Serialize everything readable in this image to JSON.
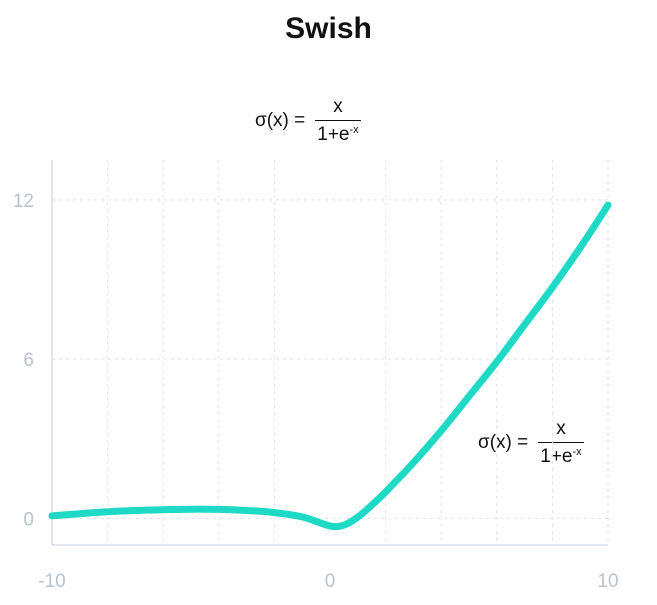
{
  "chart_data": {
    "type": "line",
    "title": "Swish",
    "xlabel": "",
    "ylabel": "",
    "xlim": [
      -10,
      10
    ],
    "ylim": [
      -1,
      13.5
    ],
    "x_ticks": [
      "-10",
      "0",
      "10"
    ],
    "y_ticks": [
      "0",
      "6",
      "12"
    ],
    "grid": true,
    "series": [
      {
        "color": "#1dd9c6",
        "x": [
          -10,
          -9,
          -8,
          -7,
          -6,
          -5,
          -4,
          -3,
          -2,
          -1,
          0,
          0.5,
          1,
          1.5,
          2,
          3,
          4,
          5,
          6,
          7,
          8,
          9,
          10
        ],
        "y": [
          0.1,
          0.18,
          0.25,
          0.3,
          0.33,
          0.35,
          0.34,
          0.3,
          0.22,
          0.06,
          -0.28,
          -0.25,
          0.05,
          0.5,
          1.0,
          2.1,
          3.3,
          4.6,
          5.9,
          7.3,
          8.7,
          10.2,
          11.8
        ]
      }
    ],
    "annotations": [
      {
        "lhs": "σ(x)  =",
        "numerator": "x",
        "denominator": "1+e",
        "exponent": "-x"
      },
      {
        "lhs": "σ(x)  =",
        "numerator": "x",
        "denominator": "1+e",
        "exponent": "-x"
      }
    ]
  }
}
